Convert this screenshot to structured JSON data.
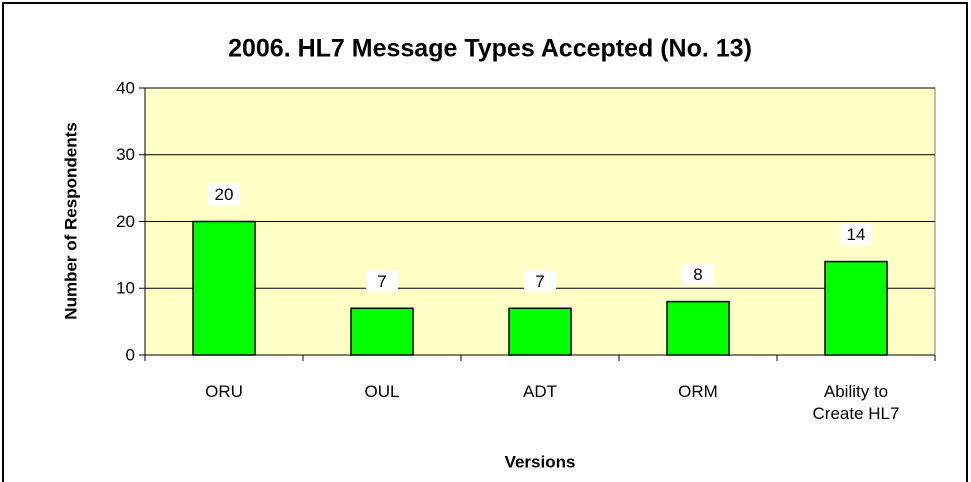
{
  "chart_data": {
    "type": "bar",
    "title": "2006. HL7 Message Types Accepted (No. 13)",
    "x_label": "Versions",
    "y_label": "Number of Respondents",
    "categories": [
      "ORU",
      "OUL",
      "ADT",
      "ORM",
      "Ability to Create HL7"
    ],
    "values": [
      20,
      7,
      7,
      8,
      14
    ],
    "color": "#00ff00",
    "ylim": [
      0,
      40
    ],
    "yticks": [
      0,
      10,
      20,
      30,
      40
    ],
    "grid": true
  }
}
